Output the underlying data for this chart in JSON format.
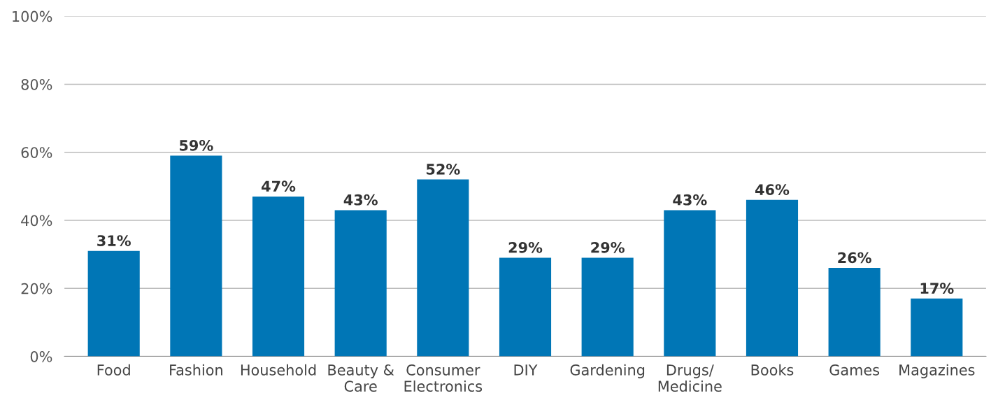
{
  "chart_data": {
    "type": "bar",
    "categories": [
      "Food",
      "Fashion",
      "Household",
      "Beauty & Care",
      "Consumer Electronics",
      "DIY",
      "Gardening",
      "Drugs/ Medicine",
      "Books",
      "Games",
      "Magazines"
    ],
    "values": [
      31,
      59,
      47,
      43,
      52,
      29,
      29,
      43,
      46,
      26,
      17
    ],
    "value_labels": [
      "31%",
      "59%",
      "47%",
      "43%",
      "52%",
      "29%",
      "29%",
      "43%",
      "46%",
      "26%",
      "17%"
    ],
    "color": "#0076b6",
    "ylim": [
      0,
      100
    ],
    "yticks": [
      {
        "value": 0,
        "label": "0%"
      },
      {
        "value": 20,
        "label": "20%"
      },
      {
        "value": 40,
        "label": "40%"
      },
      {
        "value": 60,
        "label": "60%"
      },
      {
        "value": 80,
        "label": "80%"
      },
      {
        "value": 100,
        "label": "100%"
      }
    ],
    "grid": "y"
  }
}
